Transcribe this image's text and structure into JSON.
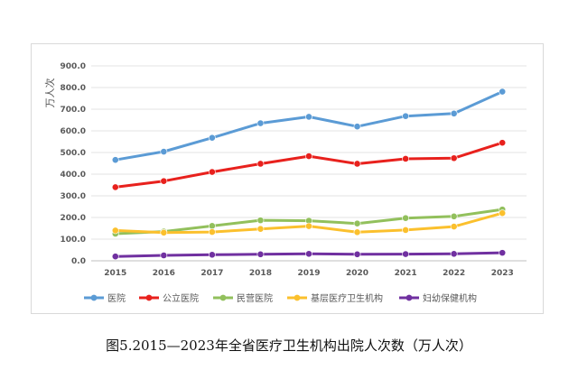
{
  "caption": "图5.2015—2023年全省医疗卫生机构出院人次数（万人次）",
  "chart_data": {
    "type": "line",
    "title": "",
    "ylabel": "万人次",
    "xlabel": "",
    "ylim": [
      0,
      900
    ],
    "ytick_step": 100,
    "ytick_labels": [
      "0.0",
      "100.0",
      "200.0",
      "300.0",
      "400.0",
      "500.0",
      "600.0",
      "700.0",
      "800.0",
      "900.0"
    ],
    "categories": [
      "2015",
      "2016",
      "2017",
      "2018",
      "2019",
      "2020",
      "2021",
      "2022",
      "2023"
    ],
    "grid": true,
    "legend_position": "bottom",
    "series": [
      {
        "name": "医院",
        "color": "#5b9bd5",
        "values": [
          466,
          504,
          568,
          635,
          665,
          620,
          668,
          680,
          781
        ]
      },
      {
        "name": "公立医院",
        "color": "#e8211d",
        "values": [
          340,
          368,
          410,
          448,
          483,
          448,
          471,
          474,
          545
        ]
      },
      {
        "name": "民营医院",
        "color": "#92c05c",
        "values": [
          125,
          135,
          161,
          187,
          185,
          172,
          197,
          205,
          237
        ]
      },
      {
        "name": "基层医疗卫生机构",
        "color": "#fbc02d",
        "values": [
          140,
          130,
          133,
          147,
          160,
          132,
          142,
          158,
          220
        ]
      },
      {
        "name": "妇幼保健机构",
        "color": "#7030a0",
        "values": [
          20,
          25,
          28,
          30,
          32,
          30,
          31,
          32,
          37
        ]
      }
    ]
  }
}
